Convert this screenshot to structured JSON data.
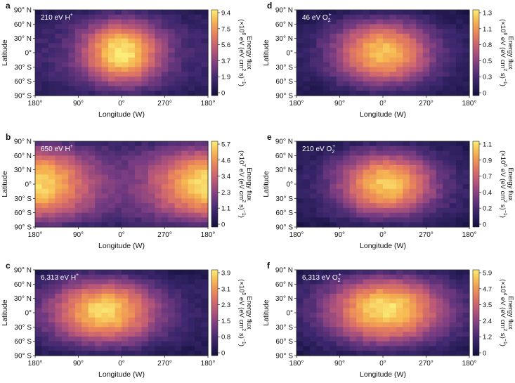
{
  "chart_data": [
    {
      "type": "heatmap",
      "panel_letter": "a",
      "label_prefix": "210 eV H",
      "label_sup": "+",
      "label_sub": "",
      "xlabel": "Longitude (W)",
      "ylabel": "Latitude",
      "x_ticks": [
        "180°",
        "90°",
        "0°",
        "270°",
        "180°"
      ],
      "y_ticks": [
        "90° N",
        "60° N",
        "30° N",
        "0°",
        "30° S",
        "60° S",
        "90° S"
      ],
      "colorbar": {
        "label_line1": "Energy flux",
        "label_exp_pre": "(×10",
        "label_exp": "6",
        "label_rest": " eV (eV cm",
        "label_sq": "2",
        "label_end": " s)",
        "label_neg": "−1",
        "label_close": ")",
        "ticks": [
          "9.4",
          "7.5",
          "5.6",
          "3.7",
          "1.9",
          "0"
        ],
        "max": 9.4
      },
      "pattern": {
        "x_center": 0.5,
        "y_center": 0.5,
        "sigma_x": 0.16,
        "sigma_y": 0.3,
        "peak": 1.0,
        "base": 0.18
      }
    },
    {
      "type": "heatmap",
      "panel_letter": "b",
      "label_prefix": "650 eV H",
      "label_sup": "+",
      "label_sub": "",
      "xlabel": "Longitude (W)",
      "ylabel": "Latitude",
      "x_ticks": [
        "180°",
        "90°",
        "0°",
        "270°",
        "180°"
      ],
      "y_ticks": [
        "90° N",
        "60° N",
        "30° N",
        "0°",
        "30° S",
        "60° S",
        "90° S"
      ],
      "colorbar": {
        "label_line1": "Energy flux",
        "label_exp_pre": "(×10",
        "label_exp": "7",
        "label_rest": " eV (eV cm",
        "label_sq": "2",
        "label_end": " s)",
        "label_neg": "−1",
        "label_close": ")",
        "ticks": [
          "5.7",
          "4.6",
          "3.4",
          "2.3",
          "1.1",
          "0"
        ],
        "max": 5.7
      },
      "pattern": {
        "x_center": 0.0,
        "y_center": 0.5,
        "sigma_x": 0.22,
        "sigma_y": 0.34,
        "peak": 0.95,
        "base": 0.28,
        "wrap": true
      }
    },
    {
      "type": "heatmap",
      "panel_letter": "c",
      "label_prefix": "6,313 eV H",
      "label_sup": "+",
      "label_sub": "",
      "xlabel": "Longitude (W)",
      "ylabel": "Latitude",
      "x_ticks": [
        "180°",
        "90°",
        "0°",
        "270°",
        "180°"
      ],
      "y_ticks": [
        "90° N",
        "60° N",
        "30° N",
        "0°",
        "30° S",
        "60° S",
        "90° S"
      ],
      "colorbar": {
        "label_line1": "Energy flux",
        "label_exp_pre": "(×10",
        "label_exp": "5",
        "label_rest": " eV (eV cm",
        "label_sq": "2",
        "label_end": " s)",
        "label_neg": "−1",
        "label_close": ")",
        "ticks": [
          "3.9",
          "3.1",
          "2.3",
          "1.5",
          "0.8",
          "0"
        ],
        "max": 3.9
      },
      "pattern": {
        "x_center": 0.4,
        "y_center": 0.48,
        "sigma_x": 0.22,
        "sigma_y": 0.3,
        "peak": 0.95,
        "base": 0.12
      }
    },
    {
      "type": "heatmap",
      "panel_letter": "d",
      "label_prefix": "46 eV O",
      "label_sup": "+",
      "label_sub": "2",
      "xlabel": "Longitude (W)",
      "ylabel": "Latitude",
      "x_ticks": [
        "180°",
        "90°",
        "0°",
        "270°",
        "180°"
      ],
      "y_ticks": [
        "90° N",
        "60° N",
        "30° N",
        "0°",
        "30° S",
        "60° S",
        "90° S"
      ],
      "colorbar": {
        "label_line1": "Energy flux",
        "label_exp_pre": "(×10",
        "label_exp": "6",
        "label_rest": " eV (eV cm",
        "label_sq": "2",
        "label_end": " s)",
        "label_neg": "−1",
        "label_close": ")",
        "ticks": [
          "1.3",
          "1.1",
          "0.8",
          "0.5",
          "0.3",
          "0"
        ],
        "max": 1.3
      },
      "pattern": {
        "x_center": 0.5,
        "y_center": 0.5,
        "sigma_x": 0.2,
        "sigma_y": 0.3,
        "peak": 0.9,
        "base": 0.1
      }
    },
    {
      "type": "heatmap",
      "panel_letter": "e",
      "label_prefix": "210 eV O",
      "label_sup": "+",
      "label_sub": "2",
      "xlabel": "Longitude (W)",
      "ylabel": "Latitude",
      "x_ticks": [
        "180°",
        "90°",
        "0°",
        "270°",
        "180°"
      ],
      "y_ticks": [
        "90° N",
        "60° N",
        "30° N",
        "0°",
        "30° S",
        "60° S",
        "90° S"
      ],
      "colorbar": {
        "label_line1": "Energy flux",
        "label_exp_pre": "(×10",
        "label_exp": "6",
        "label_rest": " eV (eV cm",
        "label_sq": "2",
        "label_end": " s)",
        "label_neg": "−1",
        "label_close": ")",
        "ticks": [
          "1.1",
          "0.9",
          "0.7",
          "0.4",
          "0.2",
          "0"
        ],
        "max": 1.1
      },
      "pattern": {
        "x_center": 0.52,
        "y_center": 0.5,
        "sigma_x": 0.2,
        "sigma_y": 0.3,
        "peak": 0.92,
        "base": 0.1
      }
    },
    {
      "type": "heatmap",
      "panel_letter": "f",
      "label_prefix": "6,313 eV O",
      "label_sup": "+",
      "label_sub": "2",
      "xlabel": "Longitude (W)",
      "ylabel": "Latitude",
      "x_ticks": [
        "180°",
        "90°",
        "0°",
        "270°",
        "180°"
      ],
      "y_ticks": [
        "90° N",
        "60° N",
        "30° N",
        "0°",
        "30° S",
        "60° S",
        "90° S"
      ],
      "colorbar": {
        "label_line1": "Energy flux",
        "label_exp_pre": "(×10",
        "label_exp": "4",
        "label_rest": " eV (eV cm",
        "label_sq": "2",
        "label_end": " s)",
        "label_neg": "−1",
        "label_close": ")",
        "ticks": [
          "5.9",
          "4.7",
          "3.5",
          "2.4",
          "1.2",
          "0"
        ],
        "max": 5.9
      },
      "pattern": {
        "x_center": 0.52,
        "y_center": 0.45,
        "sigma_x": 0.24,
        "sigma_y": 0.32,
        "peak": 0.98,
        "base": 0.1
      }
    }
  ]
}
